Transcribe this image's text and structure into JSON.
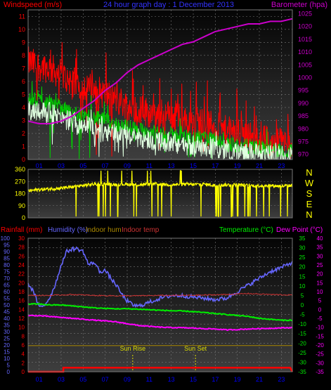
{
  "header": {
    "left_label": "Windspeed (m/s)",
    "center_label": "24 hour graph day : 1 December 2013",
    "right_label": "Barometer (hpa)"
  },
  "colors": {
    "bg": "#000000",
    "wind_gust": "#ff0000",
    "wind_avg": "#00cc00",
    "wind_light": "#e0ffe0",
    "barometer": "#cc00cc",
    "direction": "#ffff00",
    "humidity": "#6666ff",
    "temperature": "#00ee00",
    "dewpoint": "#ff00ff",
    "indoor_temp": "#cc3333",
    "indoor_hum": "#aa8800",
    "rainfall": "#ff0000",
    "marker": "#dddd00"
  },
  "chart_data": [
    {
      "type": "line",
      "name": "wind-barometer",
      "y_left": {
        "label": "Windspeed (m/s)",
        "ticks": [
          "0",
          "1",
          "2",
          "3",
          "4",
          "5",
          "6",
          "7",
          "8",
          "9",
          "10",
          "11"
        ],
        "range": [
          0,
          11.5
        ]
      },
      "y_right": {
        "label": "Barometer (hpa)",
        "ticks": [
          "970",
          "975",
          "980",
          "985",
          "990",
          "995",
          "1000",
          "1005",
          "1010",
          "1015",
          "1020",
          "1025"
        ],
        "range": [
          968,
          1026.5
        ]
      },
      "x_ticks": [
        "01",
        "03",
        "05",
        "07",
        "09",
        "11",
        "13",
        "15",
        "17",
        "19",
        "21",
        "23"
      ],
      "x_range": [
        0,
        24
      ],
      "grid": true,
      "series": [
        {
          "key": "gust",
          "color": "wind_gust",
          "style": "noisy",
          "x": [
            0,
            1,
            2,
            3,
            4,
            5,
            6,
            7,
            8,
            9,
            10,
            11,
            12,
            13,
            14,
            15,
            16,
            17,
            18,
            19,
            20,
            21,
            22,
            23,
            24
          ],
          "y": [
            7.5,
            7.2,
            7.0,
            6.5,
            6.0,
            5.6,
            5.4,
            5.0,
            4.6,
            4.2,
            3.9,
            3.6,
            3.5,
            3.3,
            3.1,
            3.0,
            2.8,
            2.5,
            2.2,
            2.0,
            1.8,
            1.6,
            1.4,
            1.3,
            1.2
          ]
        },
        {
          "key": "avg",
          "color": "wind_avg",
          "style": "noisy",
          "x": [
            0,
            1,
            2,
            3,
            4,
            5,
            6,
            7,
            8,
            9,
            10,
            11,
            12,
            13,
            14,
            15,
            16,
            17,
            18,
            19,
            20,
            21,
            22,
            23,
            24
          ],
          "y": [
            4.5,
            4.6,
            4.4,
            4.0,
            3.6,
            3.4,
            3.2,
            3.0,
            2.7,
            2.5,
            2.3,
            2.1,
            2.0,
            1.9,
            1.8,
            1.7,
            1.6,
            1.5,
            1.2,
            1.1,
            1.0,
            0.9,
            0.8,
            0.7,
            0.6
          ]
        },
        {
          "key": "light",
          "color": "wind_light",
          "style": "noisy",
          "x": [
            0,
            1,
            2,
            3,
            4,
            5,
            6,
            7,
            8,
            9,
            10,
            11,
            12,
            13,
            14,
            15,
            16,
            17,
            18,
            19,
            20,
            21,
            22,
            23,
            24
          ],
          "y": [
            3.8,
            3.8,
            3.6,
            3.2,
            2.9,
            2.7,
            2.5,
            2.3,
            2.0,
            1.9,
            1.7,
            1.5,
            1.4,
            1.3,
            1.2,
            1.1,
            1.0,
            0.9,
            0.7,
            0.6,
            0.5,
            0.4,
            0.3,
            0.3,
            0.2
          ]
        },
        {
          "key": "baro",
          "color": "barometer",
          "axis": "right",
          "style": "smooth",
          "x": [
            0,
            1,
            2,
            3,
            4,
            5,
            6,
            7,
            8,
            9,
            10,
            11,
            12,
            13,
            14,
            15,
            16,
            17,
            18,
            19,
            20,
            21,
            22,
            23,
            24
          ],
          "y": [
            983,
            982,
            982,
            983,
            985,
            988,
            991,
            995,
            998,
            1002,
            1005,
            1007,
            1009,
            1011,
            1013,
            1014,
            1016,
            1018,
            1019,
            1020,
            1021,
            1021,
            1022,
            1022,
            1023
          ]
        }
      ]
    },
    {
      "type": "line",
      "name": "wind-direction",
      "y_left": {
        "ticks": [
          "0",
          "90",
          "180",
          "270",
          "360"
        ],
        "range": [
          0,
          360
        ]
      },
      "right_labels": [
        "N",
        "W",
        "S",
        "E",
        "N"
      ],
      "x_range": [
        0,
        24
      ],
      "series": [
        {
          "key": "dir",
          "color": "direction",
          "style": "direction",
          "x": [
            0,
            1,
            2,
            3,
            4,
            5,
            6,
            7,
            8,
            9,
            10,
            11,
            12,
            13,
            14,
            15,
            16,
            17,
            18,
            19,
            20,
            21,
            22,
            23,
            24
          ],
          "y": [
            200,
            210,
            215,
            220,
            230,
            240,
            250,
            250,
            248,
            250,
            245,
            250,
            250,
            245,
            250,
            248,
            250,
            240,
            245,
            245,
            240,
            238,
            240,
            235,
            240
          ]
        }
      ]
    },
    {
      "type": "line",
      "name": "temp-humidity",
      "header": {
        "rainfall": "Rainfall (mm)",
        "humidity": "Humidity (%)",
        "indoor_hum": "Indoor hum",
        "indoor_temp": "Indoor temp",
        "temperature": "Temperature (°C)",
        "dewpoint": "Dew Point (°C)"
      },
      "y_humidity": {
        "ticks": [
          "0",
          "5",
          "10",
          "15",
          "20",
          "25",
          "30",
          "35",
          "40",
          "45",
          "50",
          "55",
          "60",
          "65",
          "70",
          "75",
          "80",
          "85",
          "90",
          "95",
          "100"
        ],
        "range": [
          0,
          100
        ]
      },
      "y_rain": {
        "ticks": [
          "0",
          "2",
          "4",
          "6",
          "8",
          "10",
          "12",
          "14",
          "16",
          "18",
          "20",
          "22",
          "24",
          "26",
          "28",
          "30"
        ],
        "range": [
          0,
          30
        ]
      },
      "y_temp": {
        "ticks": [
          "-35",
          "-30",
          "-25",
          "-20",
          "-15",
          "-10",
          "-5",
          "0",
          "5",
          "10",
          "15",
          "20",
          "25",
          "30",
          "35"
        ],
        "range": [
          -35,
          35
        ]
      },
      "y_dew": {
        "ticks": [
          "-35",
          "-30",
          "-25",
          "-20",
          "-15",
          "-10",
          "-5",
          "0",
          "5",
          "10",
          "15",
          "20",
          "25",
          "30",
          "35",
          "40"
        ],
        "range": [
          -35,
          40
        ]
      },
      "x_ticks": [
        "01",
        "03",
        "05",
        "07",
        "09",
        "11",
        "13",
        "15",
        "17",
        "19",
        "21",
        "23"
      ],
      "x_range": [
        0,
        24
      ],
      "annotations": [
        {
          "label": "Sun Rise",
          "x": 9.5
        },
        {
          "label": "Sun Set",
          "x": 15.2
        }
      ],
      "series": [
        {
          "key": "hum",
          "color": "humidity",
          "axis": "humidity",
          "x": [
            0,
            0.5,
            1,
            1.5,
            2,
            2.5,
            3,
            3.5,
            4,
            4.5,
            5,
            5.5,
            6,
            6.5,
            7,
            7.5,
            8,
            8.5,
            9,
            9.5,
            10,
            11,
            12,
            13,
            14,
            15,
            16,
            17,
            18,
            19,
            20,
            21,
            22,
            23,
            24
          ],
          "y": [
            66,
            60,
            48,
            50,
            56,
            66,
            80,
            90,
            92,
            92,
            90,
            80,
            82,
            75,
            76,
            70,
            65,
            58,
            53,
            50,
            49,
            52,
            55,
            57,
            57,
            56,
            55,
            54,
            55,
            60,
            65,
            70,
            75,
            78,
            82
          ]
        },
        {
          "key": "temp",
          "color": "temperature",
          "axis": "temp",
          "x": [
            0,
            1,
            2,
            3,
            4,
            5,
            6,
            7,
            8,
            9,
            10,
            11,
            12,
            13,
            14,
            15,
            16,
            17,
            18,
            19,
            20,
            21,
            22,
            23,
            24
          ],
          "y": [
            0.5,
            0.5,
            0,
            0,
            -0.5,
            -1,
            -1.5,
            -1.8,
            -2,
            -2,
            -2.2,
            -2.5,
            -2.8,
            -3,
            -3.2,
            -3.5,
            -4,
            -4.5,
            -5,
            -5.5,
            -6,
            -7,
            -7.5,
            -8,
            -8
          ]
        },
        {
          "key": "dew",
          "color": "dewpoint",
          "axis": "dew",
          "x": [
            0,
            1,
            2,
            3,
            4,
            5,
            6,
            7,
            8,
            9,
            10,
            11,
            12,
            13,
            14,
            15,
            16,
            17,
            18,
            19,
            20,
            21,
            22,
            23,
            24
          ],
          "y": [
            -3.5,
            -3.5,
            -4,
            -4.5,
            -5,
            -5.5,
            -6,
            -6.5,
            -7,
            -8,
            -9,
            -9.5,
            -10,
            -10.2,
            -10.3,
            -10.5,
            -10.8,
            -11,
            -11.5,
            -11.3,
            -11,
            -10.8,
            -10.6,
            -10.4,
            -10.2
          ]
        },
        {
          "key": "intemp",
          "color": "indoor_temp",
          "axis": "temp",
          "x": [
            0,
            2,
            4,
            6,
            8,
            10,
            12,
            14,
            16,
            18,
            20,
            22,
            24
          ],
          "y": [
            5,
            5,
            5.5,
            5,
            4.8,
            4.8,
            5,
            5,
            5.2,
            5.5,
            6,
            5.5,
            5.2
          ]
        },
        {
          "key": "inhum",
          "color": "indoor_hum",
          "axis": "humidity",
          "x": [
            0,
            4,
            8,
            12,
            16,
            20,
            24
          ],
          "y": [
            19.5,
            19.5,
            19.5,
            19.6,
            19.6,
            19.6,
            19.6
          ]
        },
        {
          "key": "rain",
          "color": "rainfall",
          "axis": "rain",
          "style": "step",
          "x": [
            0,
            3.2,
            3.2,
            23.8,
            24
          ],
          "y": [
            0,
            0,
            0.9,
            0.9,
            0
          ]
        }
      ]
    }
  ]
}
